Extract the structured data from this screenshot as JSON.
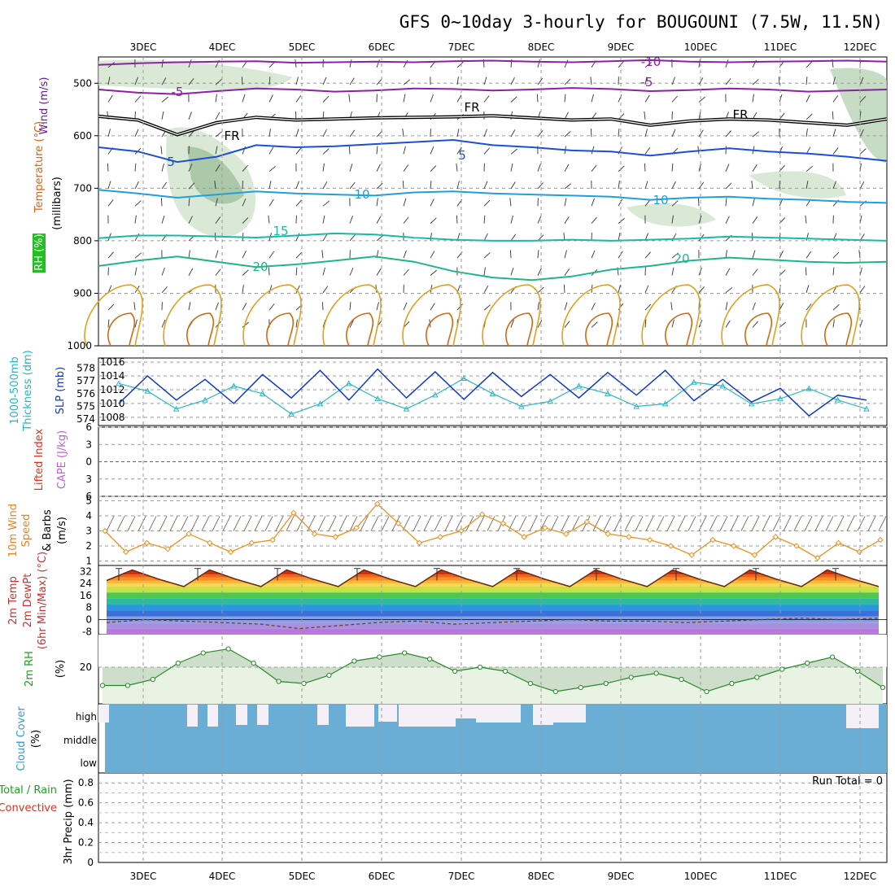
{
  "title": "GFS 0~10day 3-hourly for BOUGOUNI (7.5W, 11.5N)",
  "colors": {
    "purple": "#8e1fa8",
    "freezing": "#000000",
    "blue": "#1c4fd6",
    "lightblue": "#1f9fe0",
    "teal": "#19b9a6",
    "green": "#1fb58a",
    "orange": "#e0a020",
    "darkorange": "#d06a10",
    "cyan": "#2ab8c8",
    "slp": "#1438c8",
    "cloud": "#6aaed6",
    "rh_fill": "#e8f3e4",
    "rh_line": "#2a8a2a"
  },
  "chart_data": [
    {
      "panel": "upper-air",
      "type": "line",
      "axis_labels": [
        "Wind (m/s)",
        "Temperature (°C)",
        "RH (%)",
        "(millibars)"
      ],
      "x_ticks": [
        "3DEC",
        "4DEC",
        "5DEC",
        "6DEC",
        "7DEC",
        "8DEC",
        "9DEC",
        "10DEC",
        "11DEC",
        "12DEC"
      ],
      "y_ticks": [
        "500",
        "600",
        "700",
        "800",
        "900",
        "1000"
      ],
      "ylim": [
        450,
        1000
      ],
      "contour_labels": [
        "-10",
        "-5",
        "FR",
        "5",
        "10",
        "15",
        "20"
      ],
      "series": [
        {
          "name": "-10",
          "level_mb": [
            465,
            462,
            460,
            459,
            458,
            461,
            460,
            459,
            460,
            458,
            457,
            459,
            460,
            458,
            456,
            459,
            460,
            459,
            458,
            457,
            459
          ]
        },
        {
          "name": "-5",
          "level_mb": [
            512,
            518,
            521,
            515,
            510,
            512,
            516,
            514,
            510,
            511,
            514,
            512,
            509,
            511,
            515,
            513,
            510,
            512,
            516,
            514,
            512
          ]
        },
        {
          "name": "FR",
          "level_mb": [
            563,
            570,
            598,
            575,
            565,
            570,
            568,
            566,
            565,
            564,
            562,
            566,
            570,
            568,
            580,
            572,
            568,
            570,
            575,
            580,
            568
          ]
        },
        {
          "name": "5",
          "level_mb": [
            622,
            630,
            650,
            640,
            618,
            622,
            620,
            616,
            612,
            608,
            618,
            622,
            628,
            630,
            638,
            630,
            624,
            630,
            634,
            640,
            648
          ]
        },
        {
          "name": "10",
          "level_mb": [
            703,
            710,
            718,
            712,
            706,
            710,
            712,
            714,
            708,
            706,
            710,
            712,
            714,
            716,
            722,
            718,
            716,
            720,
            722,
            726,
            728
          ]
        },
        {
          "name": "15",
          "level_mb": [
            795,
            790,
            790,
            792,
            794,
            790,
            786,
            788,
            794,
            798,
            800,
            800,
            798,
            800,
            798,
            796,
            792,
            794,
            796,
            798,
            800
          ]
        },
        {
          "name": "20",
          "level_mb": [
            848,
            838,
            830,
            840,
            850,
            845,
            838,
            830,
            840,
            858,
            870,
            875,
            868,
            855,
            848,
            838,
            832,
            836,
            840,
            842,
            840
          ]
        }
      ]
    },
    {
      "panel": "thickness-slp",
      "type": "line",
      "axis_labels": [
        "1000-500mb",
        "Thickness (dm)",
        "SLP (mb)"
      ],
      "left_ticks": [
        "578",
        "577",
        "576",
        "575",
        "574"
      ],
      "right_ticks": [
        "1016",
        "1014",
        "1012",
        "1010",
        "1008"
      ],
      "series": [
        {
          "name": "Thickness",
          "values": [
            576.8,
            576.2,
            574.8,
            575.5,
            576.6,
            576.0,
            574.4,
            575.2,
            576.8,
            575.6,
            574.8,
            575.9,
            577.2,
            576.0,
            575.0,
            575.4,
            576.6,
            576.0,
            575.0,
            575.2,
            576.9,
            576.6,
            575.2,
            575.6,
            576.4,
            575.5,
            574.8
          ]
        },
        {
          "name": "SLP",
          "values": [
            1010.0,
            1014.0,
            1010.5,
            1013.5,
            1010.0,
            1014.2,
            1010.8,
            1014.8,
            1010.5,
            1015.0,
            1010.8,
            1014.6,
            1010.6,
            1014.5,
            1011.0,
            1014.2,
            1010.8,
            1014.5,
            1011.2,
            1014.8,
            1010.4,
            1013.5,
            1010.2,
            1012.2,
            1008.2,
            1011.2,
            1010.5
          ]
        }
      ]
    },
    {
      "panel": "cape-li",
      "type": "line",
      "axis_labels": [
        "Lifted Index",
        "CAPE (J/kg)"
      ],
      "y_ticks": [
        "6",
        "3",
        "0",
        "3",
        "6"
      ],
      "ylim": [
        -6,
        6
      ],
      "series": [
        {
          "name": "Lifted Index",
          "values": []
        }
      ]
    },
    {
      "panel": "wind-10m",
      "type": "line",
      "axis_labels": [
        "10m Wind",
        "Speed",
        "& Barbs",
        "(m/s)"
      ],
      "y_ticks": [
        "5",
        "4",
        "3",
        "2",
        "1"
      ],
      "ylim": [
        1,
        5
      ],
      "series": [
        {
          "name": "10m Wind",
          "values": [
            3.0,
            1.6,
            2.2,
            1.8,
            2.8,
            2.2,
            1.6,
            2.2,
            2.4,
            4.2,
            2.8,
            2.6,
            3.2,
            4.8,
            3.5,
            2.2,
            2.6,
            3.0,
            4.1,
            3.5,
            2.6,
            3.2,
            2.8,
            3.6,
            2.8,
            2.6,
            2.4,
            2.0,
            1.4,
            2.4,
            2.0,
            1.4,
            2.6,
            2.0,
            1.2,
            2.2,
            1.6,
            2.4
          ]
        }
      ]
    },
    {
      "panel": "temperature-2m",
      "type": "area",
      "axis_labels": [
        "2m Temp",
        "2m DewPt",
        "(6hr Min/Max) (°C)"
      ],
      "y_ticks": [
        "32",
        "24",
        "16",
        "8",
        "0",
        "-8"
      ],
      "ylim": [
        -10,
        36
      ],
      "series": [
        {
          "name": "2m Temp",
          "values": [
            26,
            33,
            27,
            22,
            33,
            27,
            22,
            33,
            27,
            22,
            33,
            27,
            22,
            33,
            27,
            22,
            33,
            27,
            22,
            33,
            27,
            22,
            33,
            27,
            22,
            33,
            27,
            22,
            33,
            27,
            22
          ]
        },
        {
          "name": "2m DewPt",
          "values": [
            -2,
            0,
            -1,
            -2,
            -3,
            -6,
            -4,
            -2,
            -1,
            -3,
            -2,
            -1,
            0,
            -1,
            -1,
            -2,
            -1,
            0,
            1,
            0,
            1
          ]
        }
      ]
    },
    {
      "panel": "rh-2m",
      "type": "area",
      "axis_labels": [
        "2m RH",
        "(%)"
      ],
      "y_ticks": [
        "20"
      ],
      "series": [
        {
          "name": "2m RH",
          "values": [
            11,
            11,
            14,
            22,
            27,
            29,
            22,
            13,
            12,
            16,
            23,
            25,
            27,
            24,
            18,
            20,
            18,
            12,
            8,
            10,
            12,
            15,
            17,
            14,
            8,
            12,
            15,
            19,
            22,
            25,
            18,
            10
          ]
        }
      ]
    },
    {
      "panel": "cloud-cover",
      "type": "bar",
      "axis_labels": [
        "Cloud Cover",
        "(%)"
      ],
      "y_ticks": [
        "high",
        "middle",
        "low"
      ]
    },
    {
      "panel": "precip",
      "type": "bar",
      "axis_labels": [
        "Total / Rain",
        "Convective",
        "3hr Precip (mm)"
      ],
      "y_ticks": [
        "0.8",
        "0.6",
        "0.4",
        "0.2",
        "0"
      ],
      "ylim": [
        0,
        0.9
      ],
      "run_total": "Run Total = 0"
    }
  ],
  "left_labels": {
    "wind": "Wind (m/s)",
    "temp": "Temperature (°C)",
    "rh": "RH (%)",
    "mb": "(millibars)",
    "thick1": "1000-500mb",
    "thick2": "Thickness (dm)",
    "slp": "SLP (mb)",
    "li": "Lifted Index",
    "cape": "CAPE (J/kg)",
    "w10a": "10m Wind",
    "w10b": "Speed",
    "w10c": "& Barbs",
    "w10d": "(m/s)",
    "t2a": "2m Temp",
    "t2b": "2m DewPt",
    "t2c": "(6hr Min/Max) (°C)",
    "rh2a": "2m RH",
    "rh2b": "(%)",
    "cca": "Cloud Cover",
    "ccb": "(%)",
    "pra": "Total / Rain",
    "prb": "Convective",
    "prc": "3hr Precip (mm)"
  }
}
